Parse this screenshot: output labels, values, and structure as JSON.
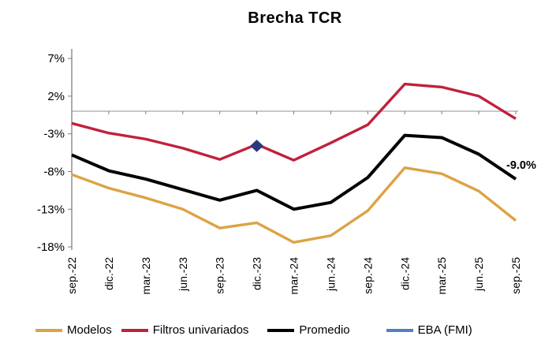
{
  "chart_data": {
    "type": "line",
    "title": "Brecha TCR",
    "unit": "%",
    "categories": [
      "sep.-22",
      "dic.-22",
      "mar.-23",
      "jun.-23",
      "sep.-23",
      "dic.-23",
      "mar.-24",
      "jun.-24",
      "sep.-24",
      "dic.-24",
      "mar.-25",
      "jun.-25",
      "sep.-25"
    ],
    "series": [
      {
        "name": "Modelos",
        "color": "#DCA344",
        "values": [
          -8.4,
          -10.2,
          -11.5,
          -13.0,
          -15.5,
          -14.8,
          -17.4,
          -16.5,
          -13.2,
          -7.5,
          -8.3,
          -10.6,
          -14.5
        ]
      },
      {
        "name": "Filtros univariados",
        "color": "#C1203D",
        "values": [
          -1.6,
          -2.9,
          -3.7,
          -4.9,
          -6.4,
          -4.4,
          -6.5,
          -4.2,
          -1.8,
          3.6,
          3.2,
          2.0,
          -1.0
        ]
      },
      {
        "name": "Promedio",
        "color": "#000000",
        "values": [
          -5.8,
          -7.9,
          -9.0,
          -10.4,
          -11.8,
          -10.5,
          -13.0,
          -12.1,
          -8.8,
          -3.2,
          -3.5,
          -5.7,
          -9.0
        ]
      },
      {
        "name": "EBA (FMI)",
        "color": "#4E81BD",
        "marker": "diamond",
        "marker_color": "#2A397E",
        "values": [
          null,
          null,
          null,
          null,
          null,
          -4.6,
          null,
          null,
          null,
          null,
          null,
          null,
          null
        ]
      }
    ],
    "ylim": [
      -18,
      7
    ],
    "yticks": [
      {
        "label": "7%",
        "value": 7
      },
      {
        "label": "2%",
        "value": 2
      },
      {
        "label": "-3%",
        "value": -3
      },
      {
        "label": "-8%",
        "value": -8
      },
      {
        "label": "-13%",
        "value": -13
      },
      {
        "label": "-18%",
        "value": -18
      }
    ],
    "zero_line": true,
    "grid": "none",
    "legend_position": "bottom",
    "annotations": [
      {
        "text": "-9.0%",
        "series": "Promedio",
        "category": "sep.-25",
        "value": -9.0
      }
    ]
  }
}
